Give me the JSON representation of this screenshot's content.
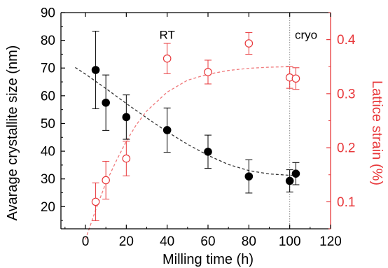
{
  "chart_data": {
    "type": "scatter",
    "title": "",
    "xlabel": "Milling time (h)",
    "ylabel": "Avarage crystallite size (nm)",
    "y2label": "Lattice strain (%)",
    "xlim": [
      -12,
      120
    ],
    "ylim": [
      12,
      90
    ],
    "y2lim": [
      0.05,
      0.45
    ],
    "x_ticks": [
      0,
      20,
      40,
      60,
      80,
      100,
      120
    ],
    "y_ticks": [
      20,
      30,
      40,
      50,
      60,
      70,
      80,
      90
    ],
    "y2_ticks": [
      0.1,
      0.2,
      0.3,
      0.4
    ],
    "grid": false,
    "legend": "none",
    "colors": {
      "size": "#000000",
      "strain": "#e8383b",
      "size_fit": "#333333",
      "strain_fit": "#f07a7c",
      "divider": "#888888"
    },
    "annotations": [
      {
        "text": "RT",
        "x": 40,
        "y": 82
      },
      {
        "text": "cryo",
        "x": 108,
        "y": 82
      }
    ],
    "vline_x": 100,
    "series": [
      {
        "axis": "left",
        "marker": "filled-circle",
        "x": [
          5,
          10,
          20,
          40,
          60,
          80,
          100,
          103
        ],
        "y": [
          69.3,
          57.5,
          52.3,
          47.6,
          39.8,
          30.9,
          29.3,
          31.9
        ],
        "err": [
          14,
          10,
          8,
          8,
          6,
          6,
          4,
          4
        ]
      },
      {
        "axis": "right",
        "marker": "open-circle",
        "x": [
          5,
          10,
          20,
          40,
          60,
          80,
          100,
          103
        ],
        "y": [
          0.1,
          0.14,
          0.18,
          0.365,
          0.34,
          0.393,
          0.33,
          0.328
        ],
        "err": [
          0.035,
          0.035,
          0.032,
          0.028,
          0.022,
          0.02,
          0.02,
          0.02
        ]
      }
    ],
    "fits": [
      {
        "axis": "left",
        "x": [
          -5,
          0,
          10,
          20,
          30,
          40,
          50,
          60,
          70,
          80,
          90,
          100,
          104
        ],
        "y": [
          70.2,
          67.8,
          62.6,
          57.2,
          52.0,
          47.0,
          42.5,
          38.5,
          35.2,
          33.0,
          31.8,
          31.3,
          31.3
        ]
      },
      {
        "axis": "right",
        "x": [
          0,
          5,
          10,
          15,
          20,
          25,
          30,
          40,
          50,
          60,
          70,
          80,
          90,
          100
        ],
        "y": [
          0.03,
          0.085,
          0.135,
          0.175,
          0.212,
          0.243,
          0.268,
          0.303,
          0.325,
          0.336,
          0.343,
          0.347,
          0.349,
          0.35
        ]
      }
    ]
  }
}
